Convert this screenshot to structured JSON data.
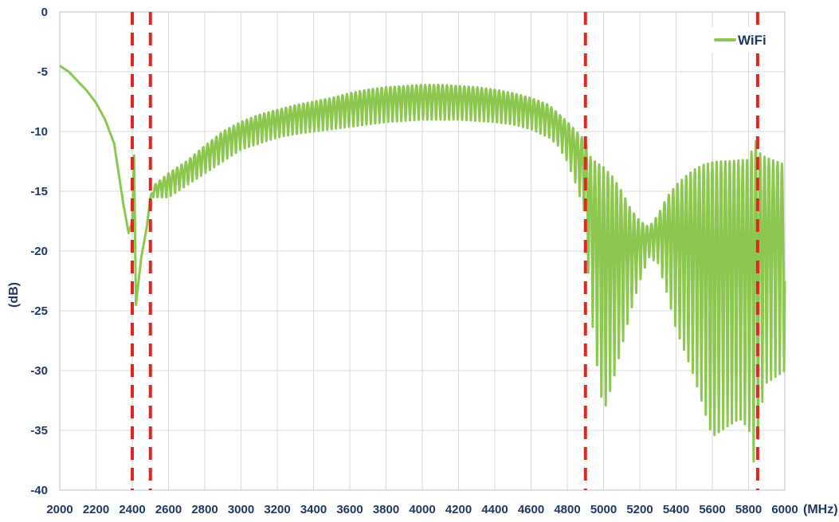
{
  "chart_data": {
    "type": "line",
    "xlabel": "(MHz)",
    "ylabel": "(dB)",
    "xlim": [
      2000,
      6000
    ],
    "ylim": [
      -40,
      0
    ],
    "x_ticks": [
      2000,
      2200,
      2400,
      2600,
      2800,
      3000,
      3200,
      3400,
      3600,
      3800,
      4000,
      4200,
      4400,
      4600,
      4800,
      5000,
      5200,
      5400,
      5600,
      5800,
      6000
    ],
    "y_ticks": [
      0,
      -5,
      -10,
      -15,
      -20,
      -25,
      -30,
      -35,
      -40
    ],
    "grid": true,
    "legend_position": "top-right",
    "series": [
      {
        "name": "WiFi",
        "color": "#8cc850",
        "x": [
          2000,
          2050,
          2100,
          2150,
          2200,
          2250,
          2300,
          2350,
          2380,
          2400,
          2410,
          2420,
          2450,
          2480,
          2500,
          2520,
          2600,
          2700,
          2800,
          2900,
          3000,
          3100,
          3200,
          3300,
          3400,
          3500,
          3600,
          3700,
          3800,
          3900,
          4000,
          4100,
          4200,
          4300,
          4400,
          4500,
          4600,
          4700,
          4750,
          4800,
          4850,
          4900,
          4920,
          4950,
          5000,
          5050,
          5100,
          5150,
          5200,
          5250,
          5300,
          5350,
          5400,
          5450,
          5500,
          5550,
          5600,
          5650,
          5700,
          5750,
          5800,
          5820,
          5840,
          5850,
          5870,
          5900,
          5950,
          6000
        ],
        "upper": [
          -4.5,
          -5.0,
          -5.8,
          -6.6,
          -7.6,
          -9.0,
          -11.0,
          -16.0,
          -18.5,
          -17.5,
          -12.0,
          -24.5,
          -20.5,
          -18.0,
          -15.5,
          -14.5,
          -13.5,
          -12.5,
          -11.2,
          -10.0,
          -9.2,
          -8.6,
          -8.2,
          -7.8,
          -7.5,
          -7.2,
          -6.8,
          -6.5,
          -6.3,
          -6.2,
          -6.1,
          -6.1,
          -6.2,
          -6.3,
          -6.5,
          -6.8,
          -7.2,
          -7.8,
          -8.5,
          -9.2,
          -10.0,
          -10.8,
          -12.0,
          -12.5,
          -13.0,
          -13.8,
          -15.0,
          -16.5,
          -17.5,
          -18.0,
          -17.0,
          -15.5,
          -14.5,
          -13.8,
          -13.2,
          -12.8,
          -12.6,
          -12.5,
          -12.5,
          -12.4,
          -12.4,
          -11.5,
          -10.8,
          -11.5,
          -12.0,
          -12.2,
          -12.5,
          -12.8
        ],
        "lower": [
          -4.5,
          -5.0,
          -5.8,
          -6.6,
          -7.6,
          -9.0,
          -11.0,
          -16.0,
          -18.5,
          -17.5,
          -12.0,
          -24.5,
          -20.5,
          -18.0,
          -15.5,
          -15.5,
          -15.5,
          -14.5,
          -13.5,
          -12.5,
          -11.5,
          -11.0,
          -10.5,
          -10.2,
          -10.0,
          -9.8,
          -9.6,
          -9.4,
          -9.2,
          -9.1,
          -9.0,
          -9.0,
          -9.0,
          -9.1,
          -9.2,
          -9.4,
          -9.8,
          -10.5,
          -11.2,
          -12.5,
          -14.5,
          -17.0,
          -23.0,
          -28.0,
          -33.5,
          -31.0,
          -28.0,
          -25.0,
          -22.5,
          -20.5,
          -21.0,
          -23.5,
          -26.5,
          -28.5,
          -30.5,
          -33.0,
          -35.5,
          -35.0,
          -34.5,
          -34.0,
          -34.8,
          -36.0,
          -40.0,
          -36.0,
          -33.0,
          -31.0,
          -30.5,
          -30.0
        ],
        "oscillation_period_mhz": 24
      }
    ],
    "markers": {
      "color": "#e52420",
      "style": "dashed",
      "x": [
        2400,
        2500,
        4900,
        5850
      ]
    }
  }
}
